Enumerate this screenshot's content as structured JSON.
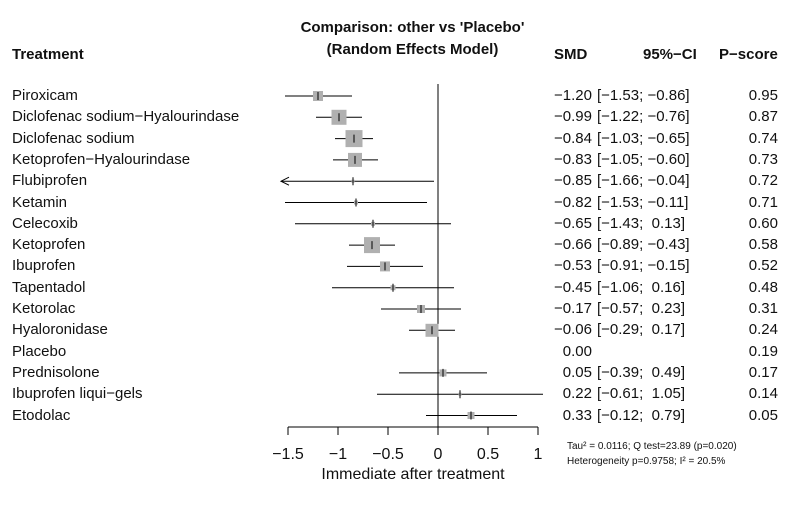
{
  "header": {
    "title_line1": "Comparison: other vs 'Placebo'",
    "title_line2": "(Random Effects Model)",
    "treatment_col": "Treatment",
    "smd_col": "SMD",
    "ci_col": "95%−CI",
    "pscore_col": "P−score"
  },
  "stats": {
    "line1": "Tau² = 0.0116; Q test=23.89 (p=0.020)",
    "line2": "Heterogeneity p=0.9758; I² = 20.5%"
  },
  "chart_data": {
    "type": "forest",
    "xlabel": "Immediate after treatment",
    "xlim": [
      -1.5,
      1
    ],
    "xticks": [
      -1.5,
      -1,
      -0.5,
      0,
      0.5,
      1
    ],
    "xtick_labels": [
      "−1.5",
      "−1",
      "−0.5",
      "0",
      "0.5",
      "1"
    ],
    "reference_line": 0,
    "rows": [
      {
        "treatment": "Piroxicam",
        "smd": -1.2,
        "lo": -1.53,
        "hi": -0.86,
        "smd_label": "−1.20",
        "ci_label": "[−1.53; −0.86]",
        "pscore": "0.95",
        "box": 10
      },
      {
        "treatment": "Diclofenac sodium−Hyalourindase",
        "smd": -0.99,
        "lo": -1.22,
        "hi": -0.76,
        "smd_label": "−0.99",
        "ci_label": "[−1.22; −0.76]",
        "pscore": "0.87",
        "box": 15
      },
      {
        "treatment": "Diclofenac sodium",
        "smd": -0.84,
        "lo": -1.03,
        "hi": -0.65,
        "smd_label": "−0.84",
        "ci_label": "[−1.03; −0.65]",
        "pscore": "0.74",
        "box": 17
      },
      {
        "treatment": "Ketoprofen−Hyalourindase",
        "smd": -0.83,
        "lo": -1.05,
        "hi": -0.6,
        "smd_label": "−0.83",
        "ci_label": "[−1.05; −0.60]",
        "pscore": "0.73",
        "box": 14
      },
      {
        "treatment": "Flubiprofen",
        "smd": -0.85,
        "lo": -1.66,
        "hi": -0.04,
        "smd_label": "−0.85",
        "ci_label": "[−1.66; −0.04]",
        "pscore": "0.72",
        "box": 3
      },
      {
        "treatment": "Ketamin",
        "smd": -0.82,
        "lo": -1.53,
        "hi": -0.11,
        "smd_label": "−0.82",
        "ci_label": "[−1.53; −0.11]",
        "pscore": "0.71",
        "box": 4
      },
      {
        "treatment": "Celecoxib",
        "smd": -0.65,
        "lo": -1.43,
        "hi": 0.13,
        "smd_label": "−0.65",
        "ci_label": "[−1.43;  0.13]",
        "pscore": "0.60",
        "box": 4
      },
      {
        "treatment": "Ketoprofen",
        "smd": -0.66,
        "lo": -0.89,
        "hi": -0.43,
        "smd_label": "−0.66",
        "ci_label": "[−0.89; −0.43]",
        "pscore": "0.58",
        "box": 16
      },
      {
        "treatment": "Ibuprofen",
        "smd": -0.53,
        "lo": -0.91,
        "hi": -0.15,
        "smd_label": "−0.53",
        "ci_label": "[−0.91; −0.15]",
        "pscore": "0.52",
        "box": 10
      },
      {
        "treatment": "Tapentadol",
        "smd": -0.45,
        "lo": -1.06,
        "hi": 0.16,
        "smd_label": "−0.45",
        "ci_label": "[−1.06;  0.16]",
        "pscore": "0.48",
        "box": 5
      },
      {
        "treatment": "Ketorolac",
        "smd": -0.17,
        "lo": -0.57,
        "hi": 0.23,
        "smd_label": "−0.17",
        "ci_label": "[−0.57;  0.23]",
        "pscore": "0.31",
        "box": 8
      },
      {
        "treatment": "Hyaloronidase",
        "smd": -0.06,
        "lo": -0.29,
        "hi": 0.17,
        "smd_label": "−0.06",
        "ci_label": "[−0.29;  0.17]",
        "pscore": "0.24",
        "box": 13
      },
      {
        "treatment": "Placebo",
        "smd": 0.0,
        "lo": null,
        "hi": null,
        "smd_label": "0.00",
        "ci_label": "",
        "pscore": "0.19",
        "box": 0
      },
      {
        "treatment": "Prednisolone",
        "smd": 0.05,
        "lo": -0.39,
        "hi": 0.49,
        "smd_label": "0.05",
        "ci_label": "[−0.39;  0.49]",
        "pscore": "0.17",
        "box": 7
      },
      {
        "treatment": "Ibuprofen liqui−gels",
        "smd": 0.22,
        "lo": -0.61,
        "hi": 1.05,
        "smd_label": "0.22",
        "ci_label": "[−0.61;  1.05]",
        "pscore": "0.14",
        "box": 3
      },
      {
        "treatment": "Etodolac",
        "smd": 0.33,
        "lo": -0.12,
        "hi": 0.79,
        "smd_label": "0.33",
        "ci_label": "[−0.12;  0.79]",
        "pscore": "0.05",
        "box": 7
      }
    ]
  }
}
